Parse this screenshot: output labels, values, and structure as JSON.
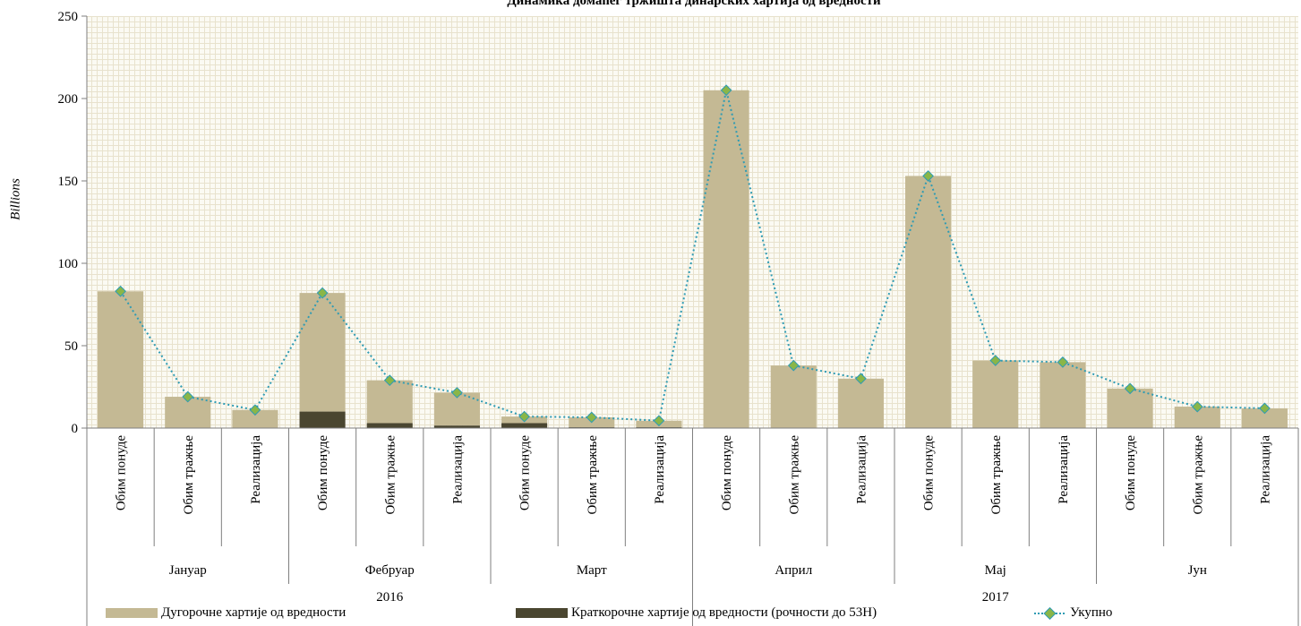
{
  "chart_data": {
    "type": "bar",
    "title": "Динамика домаћег тржишта динарских хартија од вредности",
    "ylabel": "Billions",
    "ylim": [
      0,
      250
    ],
    "yticks": [
      0,
      50,
      100,
      150,
      200,
      250
    ],
    "grid": true,
    "categories": [
      "Обим понуде",
      "Обим тражње",
      "Реализација",
      "Обим понуде",
      "Обим тражње",
      "Реализација",
      "Обим понуде",
      "Обим тражње",
      "Реализација",
      "Обим понуде",
      "Обим тражње",
      "Реализација",
      "Обим понуде",
      "Обим тражње",
      "Реализација",
      "Обим понуде",
      "Обим тражње",
      "Реализација"
    ],
    "months": [
      "Јануар",
      "Фебруар",
      "Март",
      "Април",
      "Мај",
      "Јун"
    ],
    "years": [
      "2016",
      "2017"
    ],
    "series": [
      {
        "name": "Дугорочне хартије од вредности",
        "type": "bar",
        "color": "#c4b994",
        "values": [
          83,
          19,
          11,
          72,
          26,
          20,
          4,
          6,
          4,
          205,
          38,
          30,
          153,
          41,
          40,
          24,
          13,
          12
        ]
      },
      {
        "name": "Краткорочне хартије од вредности (рочности до 53Н)",
        "type": "bar",
        "color": "#4a4630",
        "values": [
          0,
          0,
          0,
          10,
          3,
          1.5,
          3,
          0.5,
          0.5,
          0,
          0,
          0,
          0,
          0,
          0,
          0,
          0,
          0
        ]
      },
      {
        "name": "Укупно",
        "type": "line",
        "color": "#2e9bb4",
        "marker_color": "#8ab648",
        "values": [
          83,
          19,
          11,
          82,
          29,
          21.5,
          7,
          6.5,
          4.5,
          205,
          38,
          30,
          153,
          41,
          40,
          24,
          13,
          12
        ]
      }
    ],
    "legend_position": "bottom"
  }
}
